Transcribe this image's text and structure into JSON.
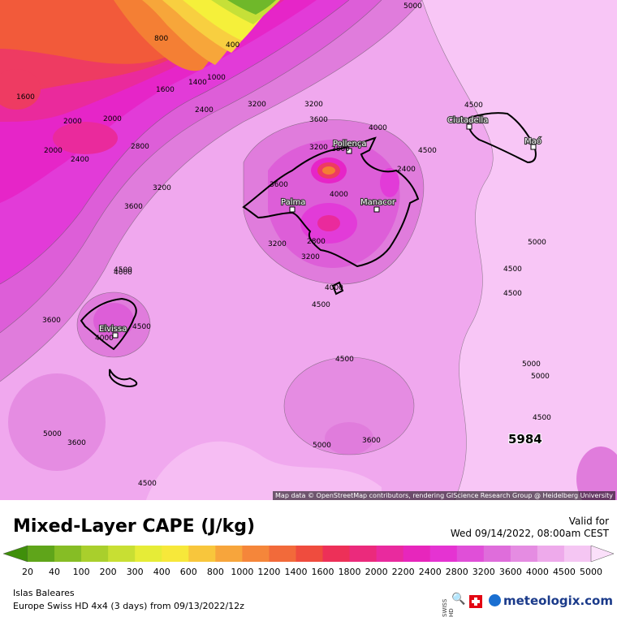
{
  "map": {
    "attribution": "Map data © OpenStreetMap contributors, rendering GIScience Research Group @ Heidelberg University",
    "stamp": "5984",
    "cities": [
      "Pollença",
      "Palma",
      "Manacor",
      "Ciutadella",
      "Maó",
      "Eivissa"
    ],
    "contour_labels": [
      "5000",
      "400",
      "800",
      "1000",
      "1400",
      "1600",
      "1600",
      "2000",
      "2000",
      "2000",
      "2400",
      "2400",
      "2800",
      "3200",
      "3200",
      "3600",
      "3200",
      "3600",
      "4000",
      "4500",
      "2800",
      "3200",
      "3600",
      "4000",
      "2400",
      "3200",
      "2800",
      "3200",
      "4000",
      "4500",
      "4500",
      "4500",
      "4500",
      "5000",
      "4500",
      "5000",
      "5000",
      "4500",
      "5000",
      "3600",
      "3600",
      "4000",
      "5000",
      "4500",
      "4500",
      "4000",
      "3600",
      "4500"
    ],
    "colors": {
      "c4500": "#f0a8ee",
      "c5000": "#f8c6f6",
      "c3600": "#e07cdc",
      "c3200": "#dd5ed8",
      "c2800": "#e23bd8",
      "c2400": "#e625c8",
      "c2000": "#ea2a9c",
      "c1600": "#ee3b62",
      "c1200": "#f25a3a",
      "c1000": "#f47f34",
      "c800": "#f7a63a",
      "c600": "#f8cf40",
      "c400": "#f5f03a",
      "c200": "#c6e038",
      "c100": "#9fd038",
      "c20": "#4a9a12"
    }
  },
  "title": "Mixed-Layer CAPE (J/kg)",
  "valid_label": "Valid for",
  "valid_time": "Wed 09/14/2022, 08:00am CEST",
  "legend": {
    "ticks": [
      "20",
      "40",
      "100",
      "200",
      "300",
      "400",
      "600",
      "800",
      "1000",
      "1200",
      "1400",
      "1600",
      "1800",
      "2000",
      "2200",
      "2400",
      "2800",
      "3200",
      "3600",
      "4000",
      "4500",
      "5000"
    ],
    "colors": [
      "#3f8f0a",
      "#5fa51a",
      "#86bd25",
      "#a9cf2c",
      "#c8df33",
      "#e6ec37",
      "#f7e83a",
      "#f8c63c",
      "#f7a53c",
      "#f5863a",
      "#f26a3a",
      "#ef4c3e",
      "#ed3058",
      "#eb2a7c",
      "#e92a9e",
      "#e726bc",
      "#e533d2",
      "#e04fd8",
      "#df6ddb",
      "#e58ce2",
      "#eeaaeb",
      "#f5c6f3",
      "#fbe0fa"
    ]
  },
  "footer": {
    "region": "Islas Baleares",
    "model": "Europe Swiss HD 4x4 (3 days) from 09/13/2022/12z",
    "brand": "meteologix.com",
    "swiss_hd": "SWISS HD"
  }
}
